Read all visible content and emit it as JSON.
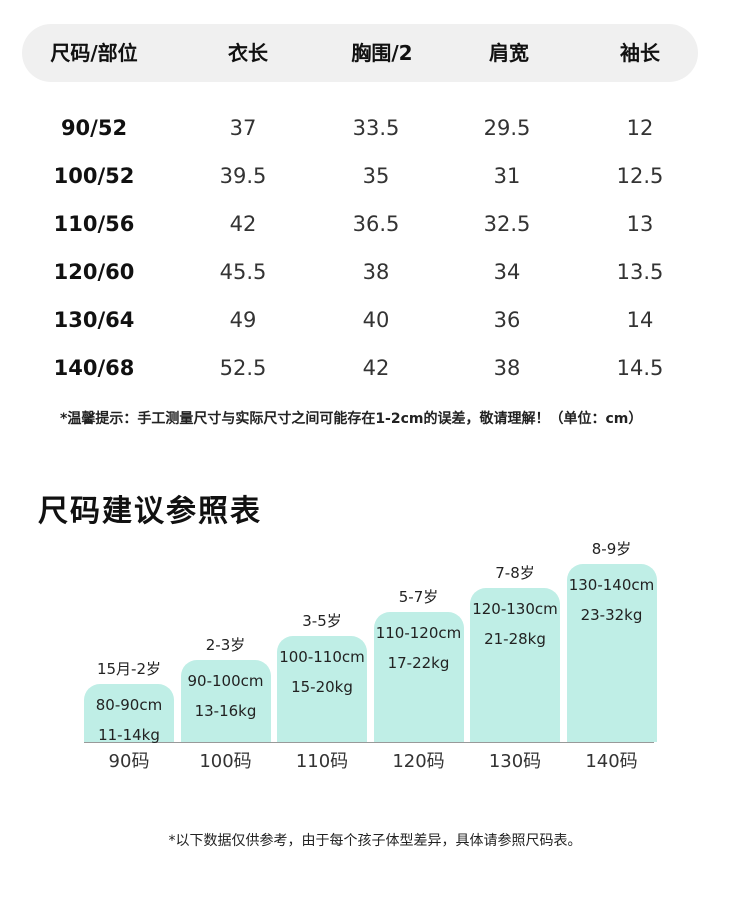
{
  "size_table": {
    "headers": [
      "尺码/部位",
      "衣长",
      "胸围/2",
      "肩宽",
      "袖长"
    ],
    "rows": [
      [
        "90/52",
        "37",
        "33.5",
        "29.5",
        "12"
      ],
      [
        "100/52",
        "39.5",
        "35",
        "31",
        "12.5"
      ],
      [
        "110/56",
        "42",
        "36.5",
        "32.5",
        "13"
      ],
      [
        "120/60",
        "45.5",
        "38",
        "34",
        "13.5"
      ],
      [
        "130/64",
        "49",
        "40",
        "36",
        "14"
      ],
      [
        "140/68",
        "52.5",
        "42",
        "38",
        "14.5"
      ]
    ],
    "note": "*温馨提示：手工测量尺寸与实际尺寸之间可能存在1-2cm的误差，敬请理解！（单位：cm）"
  },
  "recommend": {
    "title": "尺码建议参照表",
    "bar_color": "#bfeee6",
    "items": [
      {
        "age": "15月-2岁",
        "height": "80-90cm",
        "weight": "11-14kg",
        "size": "90码",
        "level": 1
      },
      {
        "age": "2-3岁",
        "height": "90-100cm",
        "weight": "13-16kg",
        "size": "100码",
        "level": 2
      },
      {
        "age": "3-5岁",
        "height": "100-110cm",
        "weight": "15-20kg",
        "size": "110码",
        "level": 3
      },
      {
        "age": "5-7岁",
        "height": "110-120cm",
        "weight": "17-22kg",
        "size": "120码",
        "level": 4
      },
      {
        "age": "7-8岁",
        "height": "120-130cm",
        "weight": "21-28kg",
        "size": "130码",
        "level": 5
      },
      {
        "age": "8-9岁",
        "height": "130-140cm",
        "weight": "23-32kg",
        "size": "140码",
        "level": 6
      }
    ],
    "footnote": "*以下数据仅供参考，由于每个孩子体型差异，具体请参照尺码表。"
  }
}
